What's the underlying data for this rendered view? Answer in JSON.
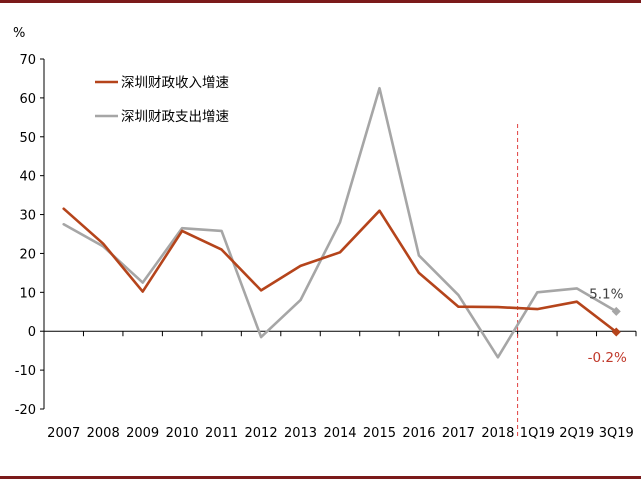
{
  "chart_data": {
    "type": "line",
    "y_unit": "%",
    "ylim": [
      -20,
      70
    ],
    "y_ticks": [
      70,
      60,
      50,
      40,
      30,
      20,
      10,
      0,
      -10,
      -20
    ],
    "categories": [
      "2007",
      "2008",
      "2009",
      "2010",
      "2011",
      "2012",
      "2013",
      "2014",
      "2015",
      "2016",
      "2017",
      "2018",
      "1Q19",
      "2Q19",
      "3Q19"
    ],
    "series": [
      {
        "name": "深圳财政收入增速",
        "color": "#b5441b",
        "values": [
          31.5,
          22.5,
          10.2,
          25.8,
          21.0,
          10.5,
          16.8,
          20.3,
          31.0,
          15.0,
          6.3,
          6.2,
          5.7,
          7.6,
          -0.2
        ]
      },
      {
        "name": "深圳财政支出增速",
        "color": "#a6a6a6",
        "values": [
          27.5,
          21.8,
          12.5,
          26.5,
          25.8,
          -1.5,
          8.0,
          28.0,
          62.5,
          19.5,
          9.3,
          -6.7,
          10.0,
          11.0,
          5.1
        ]
      }
    ],
    "annotations": [
      {
        "text": "5.1%",
        "series": 1,
        "color": "#404040"
      },
      {
        "text": "-0.2%",
        "series": 0,
        "color": "#c0392b"
      }
    ],
    "divider": {
      "after_category": "2018",
      "style": "dashed",
      "color": "#e04040"
    },
    "grid": false,
    "legend_position": "top-left"
  }
}
